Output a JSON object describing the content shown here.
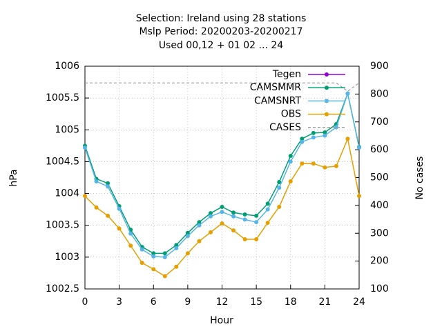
{
  "chart_data": {
    "type": "line",
    "title": [
      "Selection: Ireland using    28 stations",
      "Mslp   Period: 20200203-20200217",
      "Used  00,12  + 01 02 ... 24"
    ],
    "xlabel": "Hour",
    "ylabel": "hPa",
    "y2label": "No cases",
    "x": [
      0,
      1,
      2,
      3,
      4,
      5,
      6,
      7,
      8,
      9,
      10,
      11,
      12,
      13,
      14,
      15,
      16,
      17,
      18,
      19,
      20,
      21,
      22,
      23,
      24
    ],
    "xlim": [
      0,
      24
    ],
    "xticks": [
      0,
      3,
      6,
      9,
      12,
      15,
      18,
      21,
      24
    ],
    "ylim": [
      1002.5,
      1006
    ],
    "yticks": [
      1002.5,
      1003,
      1003.5,
      1004,
      1004.5,
      1005,
      1005.5,
      1006
    ],
    "y2lim": [
      100,
      900
    ],
    "y2ticks": [
      100,
      200,
      300,
      400,
      500,
      600,
      700,
      800,
      900
    ],
    "grid": true,
    "legend": "top-right",
    "series": [
      {
        "name": "Tegen",
        "color": "#9400d3",
        "values": [
          null,
          null,
          null,
          null,
          null,
          null,
          null,
          null,
          null,
          null,
          null,
          null,
          null,
          null,
          null,
          null,
          null,
          null,
          null,
          null,
          null,
          null,
          null,
          null,
          null
        ]
      },
      {
        "name": "CAMSMMR",
        "color": "#009e73",
        "values": [
          1004.75,
          1004.23,
          1004.16,
          1003.8,
          1003.43,
          1003.16,
          1003.06,
          1003.06,
          1003.19,
          1003.38,
          1003.55,
          1003.69,
          1003.79,
          1003.7,
          1003.67,
          1003.65,
          1003.84,
          1004.18,
          1004.59,
          1004.86,
          1004.95,
          1004.96,
          1005.09,
          1005.57,
          1004.73
        ]
      },
      {
        "name": "CAMSNRT",
        "color": "#56b4e9",
        "values": [
          1004.72,
          1004.19,
          1004.11,
          1003.76,
          1003.37,
          1003.12,
          1003.01,
          1003.0,
          1003.14,
          1003.33,
          1003.5,
          1003.64,
          1003.71,
          1003.64,
          1003.59,
          1003.55,
          1003.75,
          1004.09,
          1004.5,
          1004.81,
          1004.88,
          1004.91,
          1005.04,
          1005.57,
          1004.72
        ]
      },
      {
        "name": "OBS",
        "color": "#e69f00",
        "values": [
          1003.96,
          1003.78,
          1003.65,
          1003.45,
          1003.18,
          1002.91,
          1002.81,
          1002.7,
          1002.85,
          1003.06,
          1003.25,
          1003.39,
          1003.53,
          1003.42,
          1003.28,
          1003.28,
          1003.54,
          1003.79,
          1004.19,
          1004.47,
          1004.47,
          1004.41,
          1004.43,
          1004.86,
          1003.96
        ]
      },
      {
        "name": "CASES",
        "color": "#a0a0a0",
        "axis": "y2",
        "dashed": true,
        "values": [
          840,
          840,
          840,
          840,
          840,
          840,
          840,
          840,
          840,
          840,
          840,
          840,
          840,
          840,
          840,
          840,
          840,
          840,
          840,
          840,
          840,
          840,
          840,
          810,
          840
        ]
      }
    ]
  }
}
